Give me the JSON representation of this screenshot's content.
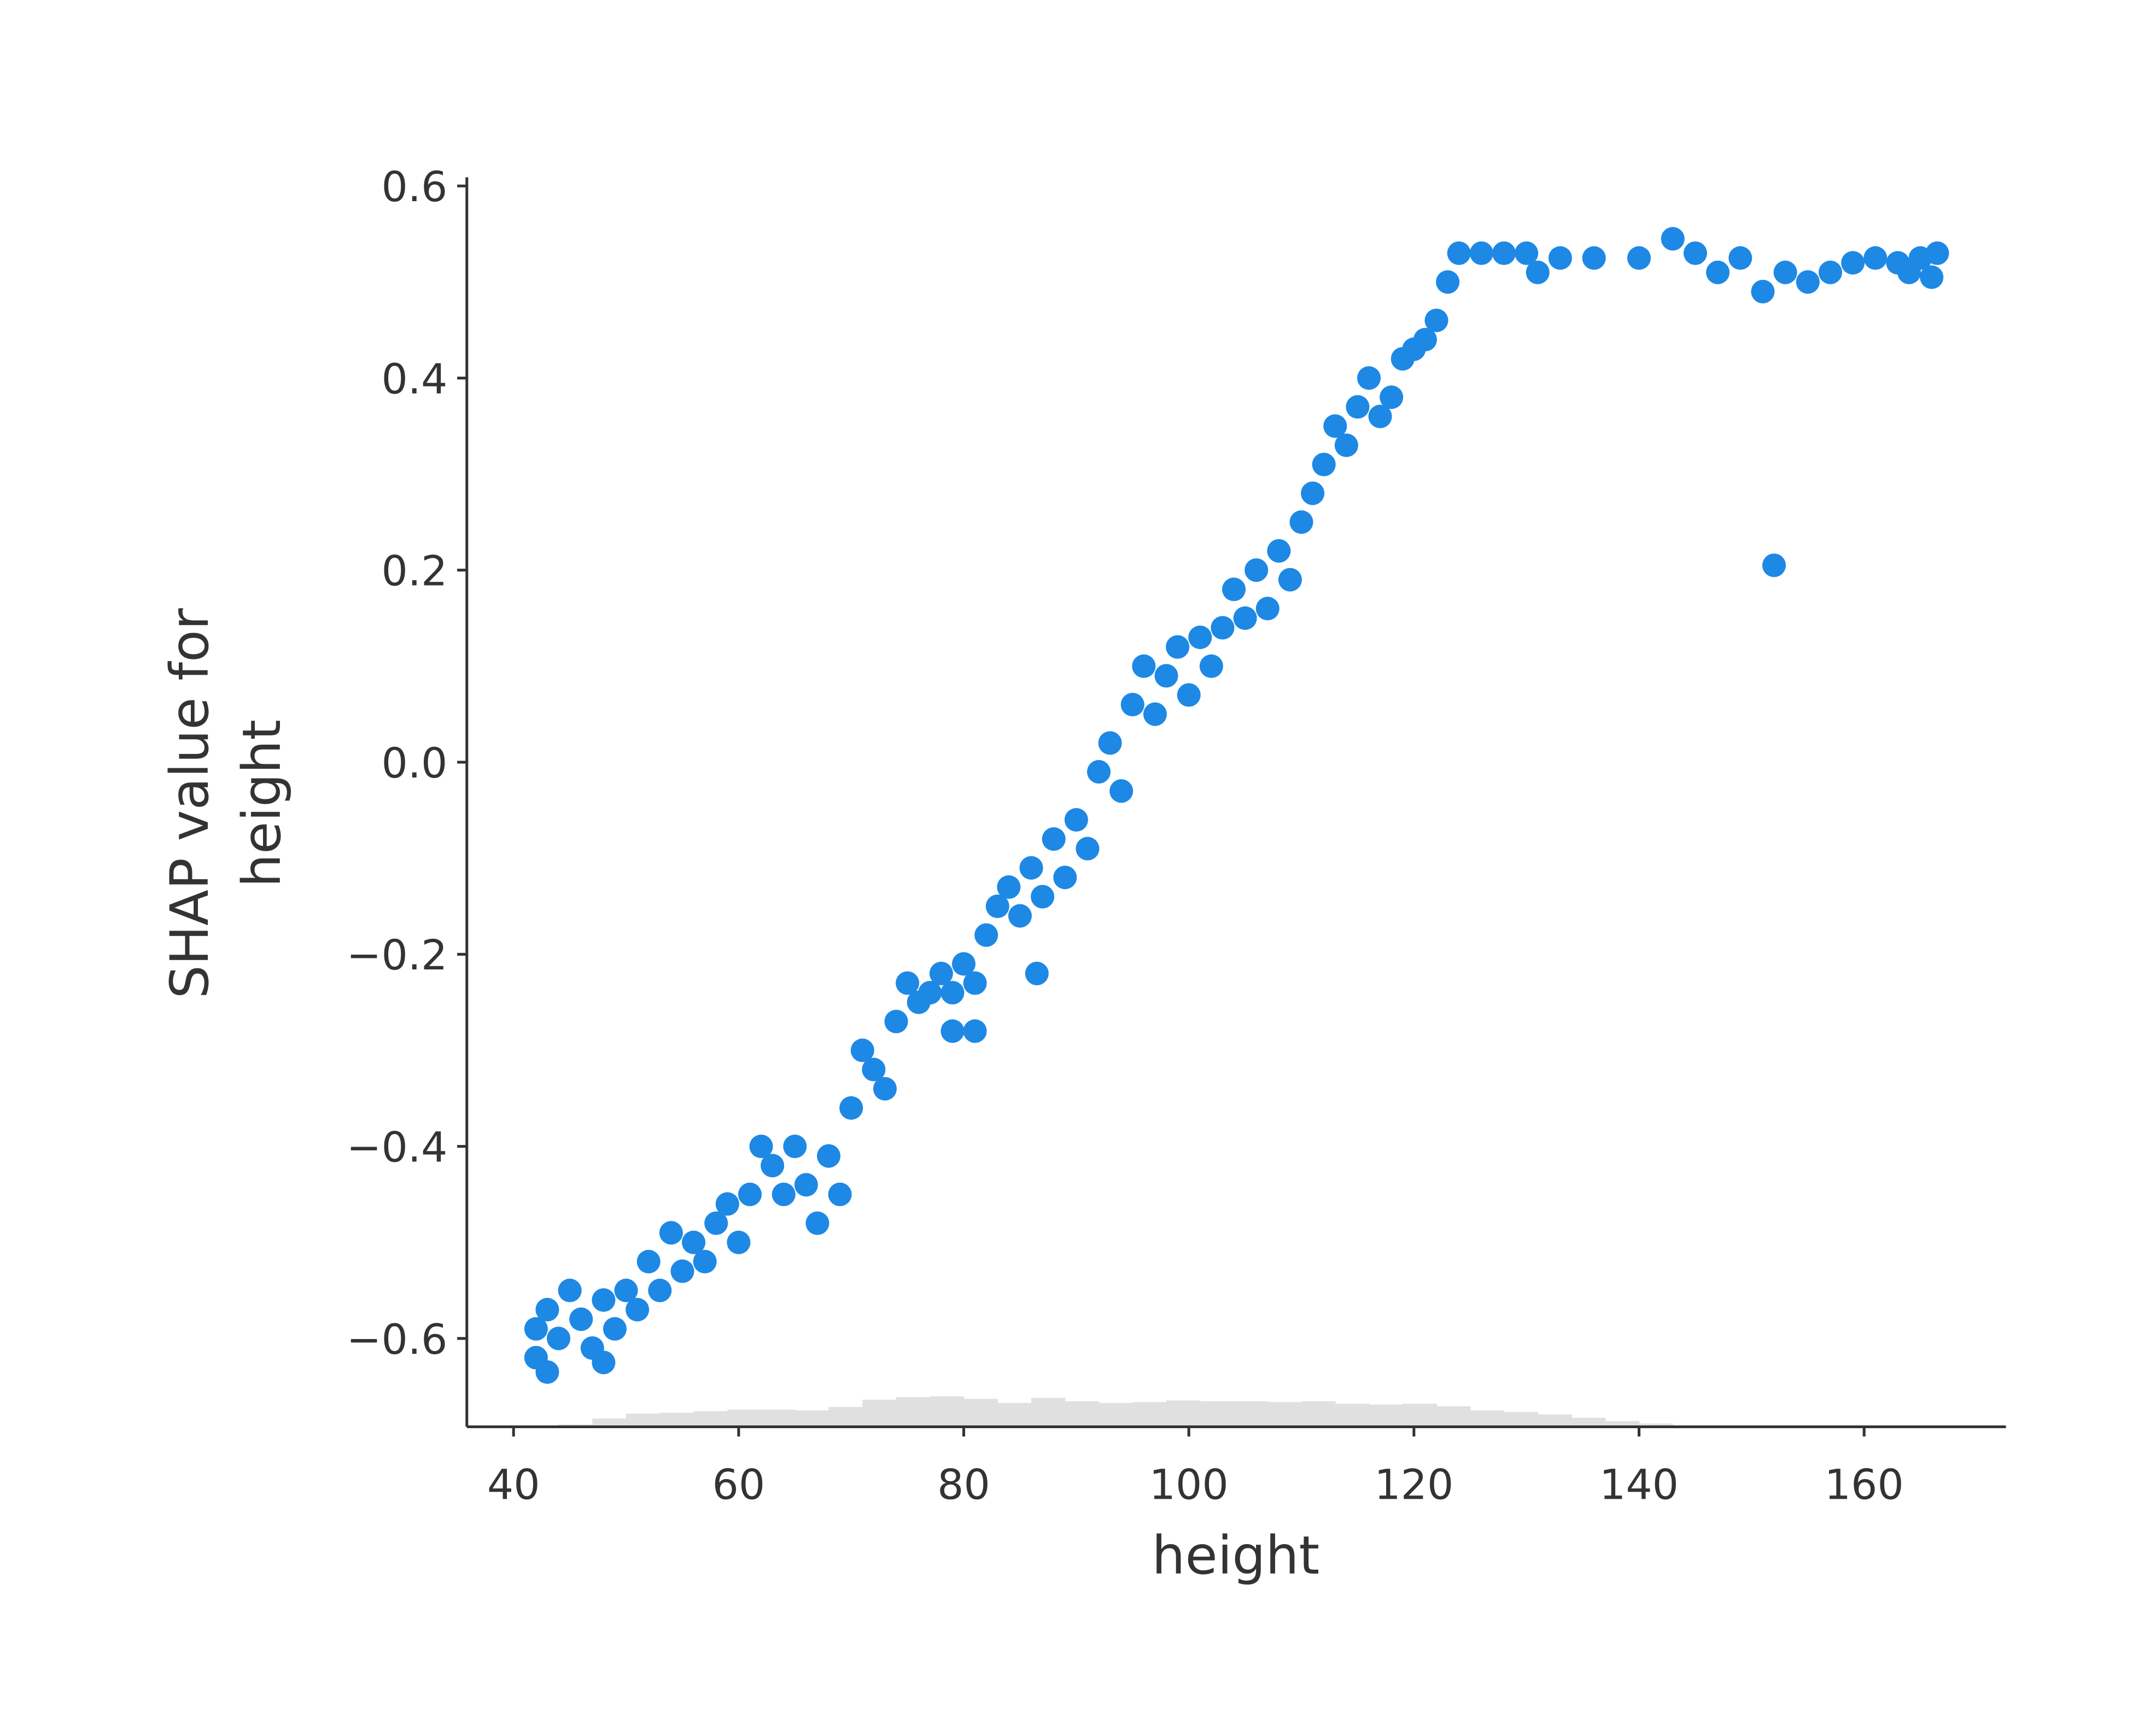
{
  "chart_data": {
    "type": "scatter",
    "xlabel": "height",
    "ylabel": [
      "SHAP value for",
      "height"
    ],
    "color": "#1e88e5",
    "xlim": [
      35.85,
      172.6
    ],
    "ylim": [
      -0.692,
      0.609
    ],
    "xticks": [
      40,
      60,
      80,
      100,
      120,
      140,
      160
    ],
    "yticks": [
      {
        "value": -0.6,
        "label": "−0.6"
      },
      {
        "value": -0.4,
        "label": "−0.4"
      },
      {
        "value": -0.2,
        "label": "−0.2"
      },
      {
        "value": 0,
        "label": "0.0"
      },
      0.2,
      0.4,
      0.6
    ],
    "x": [
      42,
      42,
      43,
      43,
      44,
      45,
      46,
      47,
      48,
      48,
      49,
      50,
      51,
      52,
      53,
      54,
      55,
      56,
      57,
      58,
      59,
      60,
      61,
      62,
      63,
      64,
      65,
      66,
      67,
      68,
      69,
      70,
      71,
      72,
      73,
      74,
      75,
      76,
      77,
      78,
      79,
      80,
      81,
      82,
      83,
      84,
      85,
      86,
      86.5,
      87,
      88,
      89,
      90,
      91,
      92,
      93,
      94,
      95,
      96,
      97,
      98,
      99,
      100,
      101,
      102,
      103,
      104,
      105,
      106,
      107,
      108,
      109,
      110,
      111,
      112,
      113,
      114,
      115,
      116,
      117,
      118,
      119,
      120,
      121,
      122,
      123,
      124,
      126,
      128,
      130,
      131,
      133,
      136,
      140,
      143,
      145,
      147,
      149,
      151,
      152,
      153,
      155,
      157,
      159,
      161,
      163,
      164,
      165,
      166,
      166.5,
      81,
      79
    ],
    "values": [
      -0.59,
      -0.62,
      -0.57,
      -0.635,
      -0.6,
      -0.55,
      -0.58,
      -0.61,
      -0.56,
      -0.625,
      -0.59,
      -0.55,
      -0.57,
      -0.52,
      -0.55,
      -0.49,
      -0.53,
      -0.5,
      -0.52,
      -0.48,
      -0.46,
      -0.5,
      -0.45,
      -0.4,
      -0.42,
      -0.45,
      -0.4,
      -0.44,
      -0.48,
      -0.41,
      -0.45,
      -0.36,
      -0.3,
      -0.32,
      -0.34,
      -0.27,
      -0.23,
      -0.25,
      -0.24,
      -0.22,
      -0.28,
      -0.21,
      -0.23,
      -0.18,
      -0.15,
      -0.13,
      -0.16,
      -0.11,
      -0.22,
      -0.14,
      -0.08,
      -0.12,
      -0.06,
      -0.09,
      -0.01,
      0.02,
      -0.03,
      0.06,
      0.1,
      0.05,
      0.09,
      0.12,
      0.07,
      0.13,
      0.1,
      0.14,
      0.18,
      0.15,
      0.2,
      0.16,
      0.22,
      0.19,
      0.25,
      0.28,
      0.31,
      0.35,
      0.33,
      0.37,
      0.4,
      0.36,
      0.38,
      0.42,
      0.43,
      0.44,
      0.46,
      0.5,
      0.53,
      0.53,
      0.53,
      0.53,
      0.51,
      0.525,
      0.525,
      0.525,
      0.545,
      0.53,
      0.51,
      0.525,
      0.49,
      0.205,
      0.51,
      0.5,
      0.51,
      0.52,
      0.525,
      0.52,
      0.51,
      0.525,
      0.505,
      0.53,
      -0.28,
      -0.24
    ],
    "histogram": {
      "color": "#e0e0e0",
      "bins": [
        41,
        44,
        47,
        50,
        53,
        56,
        59,
        62,
        65,
        68,
        71,
        74,
        77,
        80,
        83,
        86,
        89,
        92,
        95,
        98,
        101,
        104,
        107,
        110,
        113,
        116,
        119,
        122,
        125,
        128,
        131,
        134,
        137,
        140,
        143,
        146,
        149,
        152,
        155,
        158,
        161,
        164,
        167
      ],
      "counts": [
        0,
        3,
        10,
        16,
        17,
        19,
        21,
        21,
        20,
        24,
        33,
        36,
        37,
        34,
        29,
        35,
        31,
        29,
        30,
        32,
        31,
        31,
        30,
        31,
        28,
        27,
        28,
        25,
        20,
        18,
        15,
        11,
        7,
        4,
        1,
        1,
        0,
        0,
        0,
        0,
        0,
        0
      ]
    }
  }
}
